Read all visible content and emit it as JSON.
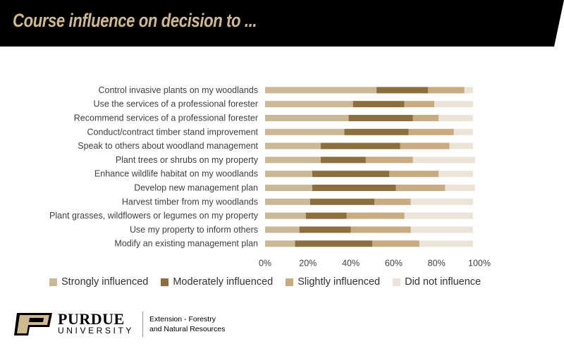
{
  "header": {
    "title": "Course influence on decision to ..."
  },
  "footer": {
    "brand_name": "PURDUE",
    "brand_university": "UNIVERSITY",
    "department_line1": "Extension - Forestry",
    "department_line2": "and Natural Resources"
  },
  "colors": {
    "banner": "#000000",
    "title": "#cfb991",
    "strongly": "#cbb897",
    "moderately": "#8d6e3f",
    "slightly": "#c8ab80",
    "not": "#ece4d8"
  },
  "chart_data": {
    "type": "bar",
    "orientation": "horizontal",
    "stacked": true,
    "categories": [
      "Control invasive plants on my woodlands",
      "Use the services of a professional forester",
      "Recommend services of a professional forester",
      "Conduct/contract timber stand improvement",
      "Speak to others about woodland management",
      "Plant trees or shrubs on my property",
      "Enhance wildlife habitat on my woodlands",
      "Develop new management plan",
      "Harvest timber from my woodlands",
      "Plant grasses, wildflowers or legumes on my property",
      "Use my property to inform others",
      "Modify an existing management plan"
    ],
    "series": [
      {
        "name": "Strongly influenced",
        "color": "#cbb897",
        "values": [
          52,
          41,
          39,
          37,
          26,
          26,
          22,
          22,
          21,
          19,
          16,
          14
        ]
      },
      {
        "name": "Moderately influenced",
        "color": "#8d6e3f",
        "values": [
          24,
          24,
          30,
          30,
          37,
          21,
          36,
          39,
          30,
          19,
          24,
          36
        ]
      },
      {
        "name": "Slightly influenced",
        "color": "#c8ab80",
        "values": [
          17,
          14,
          12,
          21,
          23,
          22,
          23,
          23,
          17,
          27,
          28,
          22
        ]
      },
      {
        "name": "Did not influence",
        "color": "#ece4d8",
        "values": [
          4,
          18,
          16,
          9,
          11,
          29,
          16,
          14,
          29,
          32,
          29,
          25
        ]
      }
    ],
    "x_ticks": [
      "0%",
      "20%",
      "40%",
      "60%",
      "80%",
      "100%"
    ],
    "xlim": [
      0,
      100
    ],
    "legend_position": "bottom",
    "grid": false
  }
}
